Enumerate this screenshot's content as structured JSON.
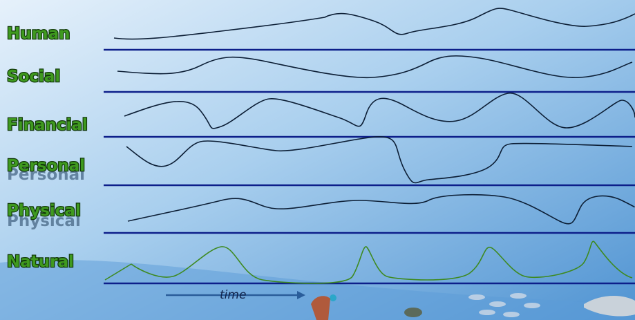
{
  "rows": [
    {
      "label": "Human"
    },
    {
      "label": "Social"
    },
    {
      "label": "Financial"
    },
    {
      "label": "Personal"
    },
    {
      "label": "Physical"
    },
    {
      "label": "Natural"
    }
  ],
  "axis": {
    "label": "time"
  }
}
